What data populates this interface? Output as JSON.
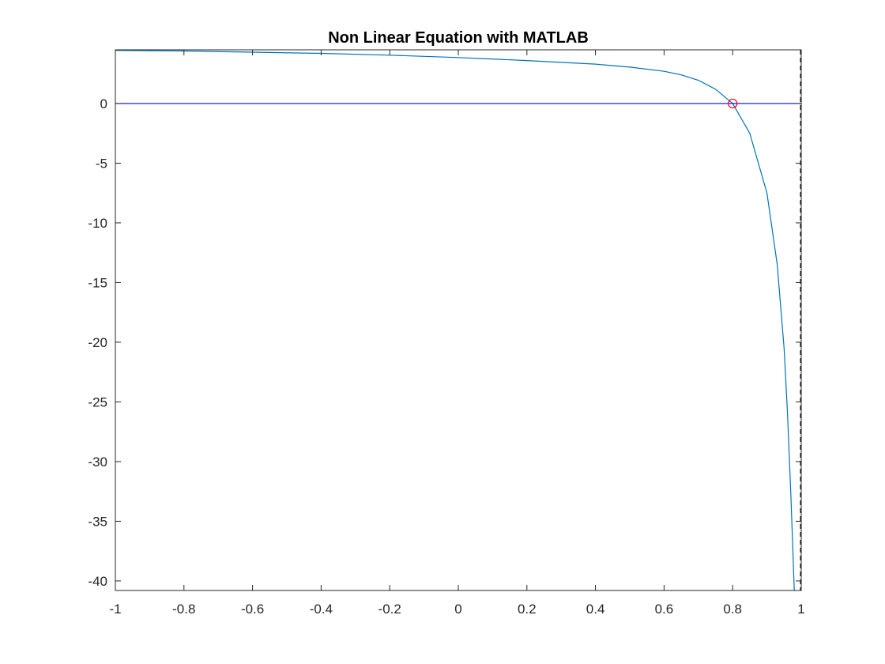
{
  "chart_data": {
    "type": "line",
    "title": "Non Linear Equation with MATLAB",
    "xlabel": "",
    "ylabel": "",
    "xlim": [
      -1,
      1
    ],
    "ylim": [
      -40.8,
      4.5
    ],
    "x_ticks": [
      -1,
      -0.8,
      -0.6,
      -0.4,
      -0.2,
      0,
      0.2,
      0.4,
      0.6,
      0.8,
      1
    ],
    "x_tick_labels": [
      "-1",
      "-0.8",
      "-0.6",
      "-0.4",
      "-0.2",
      "0",
      "0.2",
      "0.4",
      "0.6",
      "0.8",
      "1"
    ],
    "y_ticks": [
      -40,
      -35,
      -30,
      -25,
      -20,
      -15,
      -10,
      -5,
      0
    ],
    "y_tick_labels": [
      "-40",
      "-35",
      "-30",
      "-25",
      "-20",
      "-15",
      "-10",
      "-5",
      "0"
    ],
    "grid": false,
    "series": [
      {
        "color": "#0072BD",
        "x": [
          -1,
          -0.8,
          -0.6,
          -0.4,
          -0.2,
          0,
          0.2,
          0.4,
          0.5,
          0.6,
          0.65,
          0.7,
          0.75,
          0.8,
          0.85,
          0.9,
          0.93,
          0.95,
          0.96,
          0.97,
          0.975,
          0.98
        ],
        "y": [
          4.45,
          4.4,
          4.3,
          4.2,
          4.05,
          3.85,
          3.6,
          3.3,
          3.05,
          2.7,
          2.4,
          1.95,
          1.2,
          0,
          -2.5,
          -7.5,
          -13.5,
          -20.5,
          -26,
          -33,
          -37,
          -41
        ]
      },
      {
        "color": "#0000FF",
        "x": [
          -1,
          1
        ],
        "y": [
          0,
          0
        ]
      }
    ],
    "markers": [
      {
        "x": 0.8,
        "y": 0,
        "shape": "circle",
        "color": "#FF0000"
      }
    ],
    "reference_lines": [
      {
        "orientation": "vertical",
        "x": 1,
        "style": "dashed",
        "color": "#000000"
      }
    ]
  }
}
